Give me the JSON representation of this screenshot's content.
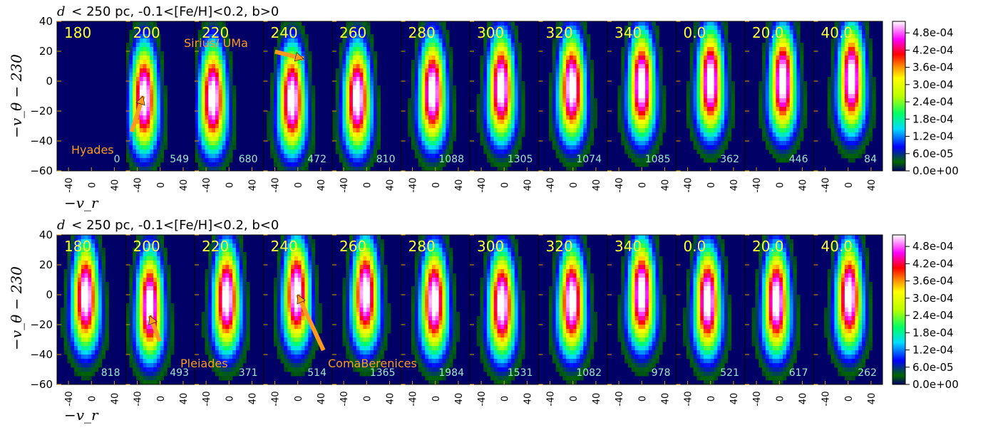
{
  "chart_data": [
    {
      "type": "heatmap",
      "title_math": "d",
      "title_text": "< 250 pc, -0.1<[Fe/H]<0.2, b>0",
      "ylabel": "−v_θ − 230",
      "xlabel": "−v_r",
      "xlim": [
        -60,
        60
      ],
      "ylim": [
        -60,
        40
      ],
      "yticks": [
        "40",
        "20",
        "0",
        "−20",
        "−40",
        "−60"
      ],
      "xticks": [
        "-40",
        "0",
        "40"
      ],
      "panels": [
        {
          "lon": "180",
          "count": "0",
          "peak": null
        },
        {
          "lon": "200",
          "count": "549",
          "peak": [
            -28,
            -7
          ]
        },
        {
          "lon": "220",
          "count": "680",
          "peak": [
            -28,
            -7
          ]
        },
        {
          "lon": "240",
          "count": "472",
          "peak": [
            -10,
            -8
          ]
        },
        {
          "lon": "260",
          "count": "810",
          "peak": [
            -16,
            -7
          ]
        },
        {
          "lon": "280",
          "count": "1088",
          "peak": [
            -5,
            -3
          ]
        },
        {
          "lon": "300",
          "count": "1305",
          "peak": [
            -5,
            0
          ]
        },
        {
          "lon": "320",
          "count": "1074",
          "peak": [
            -2,
            0
          ]
        },
        {
          "lon": "340",
          "count": "1085",
          "peak": [
            0,
            2
          ]
        },
        {
          "lon": "0.0",
          "count": "362",
          "peak": [
            0,
            4
          ]
        },
        {
          "lon": "20.0",
          "count": "446",
          "peak": [
            6,
            4
          ]
        },
        {
          "lon": "40.0",
          "count": "84",
          "peak": [
            6,
            6
          ]
        }
      ],
      "annotations": [
        {
          "text": "Hyades",
          "target": [
            -30,
            -10
          ]
        },
        {
          "text": "Sirius/ UMa",
          "target": [
            10,
            15
          ]
        }
      ]
    },
    {
      "type": "heatmap",
      "title_math": "d",
      "title_text": "< 250 pc, -0.1<[Fe/H]<0.2, b<0",
      "ylabel": "−v_θ − 230",
      "xlabel": "−v_r",
      "xlim": [
        -60,
        60
      ],
      "ylim": [
        -60,
        40
      ],
      "yticks": [
        "40",
        "20",
        "0",
        "−20",
        "−40",
        "−60"
      ],
      "xticks": [
        "-40",
        "0",
        "40"
      ],
      "panels": [
        {
          "lon": "180",
          "count": "818",
          "peak": [
            -10,
            3
          ]
        },
        {
          "lon": "200",
          "count": "493",
          "peak": [
            -18,
            -3
          ]
        },
        {
          "lon": "220",
          "count": "371",
          "peak": [
            -4,
            2
          ]
        },
        {
          "lon": "240",
          "count": "514",
          "peak": [
            -2,
            5
          ]
        },
        {
          "lon": "260",
          "count": "1365",
          "peak": [
            -2,
            5
          ]
        },
        {
          "lon": "280",
          "count": "1984",
          "peak": [
            -2,
            0
          ]
        },
        {
          "lon": "300",
          "count": "1531",
          "peak": [
            -4,
            -2
          ]
        },
        {
          "lon": "320",
          "count": "1082",
          "peak": [
            -2,
            0
          ]
        },
        {
          "lon": "340",
          "count": "978",
          "peak": [
            0,
            5
          ]
        },
        {
          "lon": "0.0",
          "count": "521",
          "peak": [
            -5,
            0
          ]
        },
        {
          "lon": "20.0",
          "count": "617",
          "peak": [
            -5,
            0
          ]
        },
        {
          "lon": "40.0",
          "count": "262",
          "peak": [
            2,
            3
          ]
        }
      ],
      "annotations": [
        {
          "text": "Pleiades",
          "target": [
            -18,
            -14
          ]
        },
        {
          "text": "ComaBerenices",
          "target": [
            0,
            0
          ]
        }
      ]
    }
  ],
  "colorbar": {
    "ticks": [
      "4.8e-04",
      "4.2e-04",
      "3.6e-04",
      "3.0e-04",
      "2.4e-04",
      "1.8e-04",
      "1.2e-04",
      "6.0e-05",
      "0.0e+00"
    ],
    "range": [
      0,
      0.00052
    ]
  },
  "colors": {
    "background": "#000066",
    "annotation": "#ff9a1f",
    "panel_label": "#ffff33",
    "count_label": "#9fe6c9"
  }
}
